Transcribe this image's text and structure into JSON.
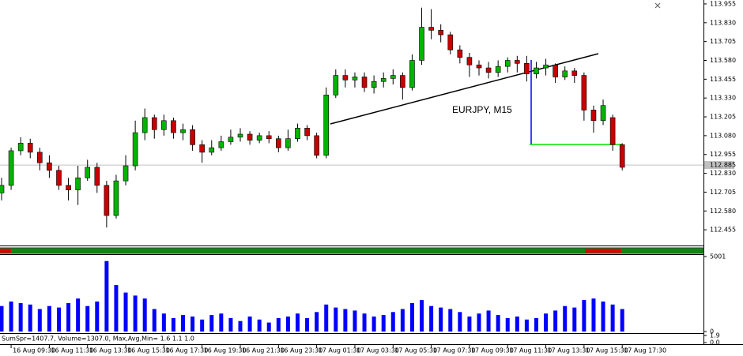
{
  "chart_data": {
    "type": "candlestick",
    "title": "EURJPY, M15",
    "categories": [
      null,
      "16 Aug 09:30",
      null,
      null,
      null,
      "16 Aug 11:30",
      null,
      null,
      null,
      "16 Aug 13:30",
      null,
      null,
      null,
      "16 Aug 15:30",
      null,
      null,
      null,
      "16 Aug 17:30",
      null,
      null,
      null,
      "16 Aug 19:30",
      null,
      null,
      null,
      "16 Aug 21:30",
      null,
      null,
      null,
      "16 Aug 23:30",
      null,
      null,
      null,
      "17 Aug 01:30",
      null,
      null,
      null,
      "17 Aug 03:30",
      null,
      null,
      null,
      "17 Aug 05:30",
      null,
      null,
      null,
      "17 Aug 07:30",
      null,
      null,
      null,
      "17 Aug 09:30",
      null,
      null,
      null,
      "17 Aug 11:30",
      null,
      null,
      null,
      "17 Aug 13:30",
      null,
      null,
      null,
      "17 Aug 15:30",
      null,
      null,
      null,
      "17 Aug 17:30"
    ],
    "open": [
      112.7,
      112.75,
      112.98,
      113.03,
      112.97,
      112.9,
      112.85,
      112.75,
      112.72,
      112.8,
      112.87,
      112.75,
      112.55,
      112.78,
      112.88,
      113.1,
      113.2,
      113.12,
      113.18,
      113.1,
      113.12,
      113.02,
      112.97,
      113.0,
      113.04,
      113.07,
      113.09,
      113.05,
      113.08,
      113.06,
      113.0,
      113.06,
      113.13,
      113.08,
      112.95,
      113.35,
      113.48,
      113.45,
      113.47,
      113.4,
      113.44,
      113.46,
      113.48,
      113.4,
      113.58,
      113.8,
      113.78,
      113.75,
      113.65,
      113.6,
      113.55,
      113.53,
      113.5,
      113.54,
      113.58,
      113.56,
      113.49,
      113.53,
      113.55,
      113.47,
      113.51,
      113.48,
      113.25,
      113.18,
      113.2,
      113.02
    ],
    "high": [
      112.8,
      113.0,
      113.07,
      113.06,
      113.0,
      112.95,
      112.88,
      112.8,
      112.88,
      112.92,
      112.9,
      112.78,
      112.82,
      112.95,
      113.18,
      113.26,
      113.22,
      113.22,
      113.2,
      113.16,
      113.15,
      113.05,
      113.05,
      113.08,
      113.12,
      113.13,
      113.11,
      113.1,
      113.11,
      113.08,
      113.12,
      113.16,
      113.15,
      113.1,
      113.4,
      113.52,
      113.52,
      113.5,
      113.5,
      113.48,
      113.5,
      113.52,
      113.5,
      113.62,
      113.93,
      113.92,
      113.82,
      113.77,
      113.68,
      113.63,
      113.58,
      113.57,
      113.58,
      113.6,
      113.61,
      113.61,
      113.57,
      113.59,
      113.56,
      113.54,
      113.53,
      113.5,
      113.28,
      113.32,
      113.22,
      113.03
    ],
    "low": [
      112.65,
      112.72,
      112.95,
      112.93,
      112.85,
      112.8,
      112.72,
      112.65,
      112.62,
      112.78,
      112.7,
      112.47,
      112.53,
      112.75,
      112.85,
      113.05,
      113.06,
      113.08,
      113.06,
      113.05,
      112.98,
      112.9,
      112.95,
      112.98,
      113.02,
      113.04,
      113.02,
      113.03,
      113.03,
      112.97,
      112.98,
      113.04,
      113.05,
      112.93,
      112.93,
      113.33,
      113.4,
      113.4,
      113.37,
      113.36,
      113.4,
      113.42,
      113.32,
      113.38,
      113.55,
      113.72,
      113.7,
      113.62,
      113.56,
      113.47,
      113.48,
      113.46,
      113.47,
      113.5,
      113.5,
      113.44,
      113.46,
      113.48,
      113.43,
      113.45,
      113.43,
      113.18,
      113.1,
      113.15,
      112.98,
      112.85
    ],
    "close": [
      112.75,
      112.98,
      113.03,
      112.97,
      112.9,
      112.85,
      112.75,
      112.72,
      112.8,
      112.87,
      112.75,
      112.55,
      112.78,
      112.88,
      113.1,
      113.2,
      113.12,
      113.18,
      113.1,
      113.12,
      113.02,
      112.97,
      113.0,
      113.04,
      113.07,
      113.09,
      113.05,
      113.08,
      113.06,
      113.0,
      113.06,
      113.13,
      113.08,
      112.95,
      113.35,
      113.48,
      113.45,
      113.47,
      113.4,
      113.44,
      113.46,
      113.48,
      113.4,
      113.58,
      113.8,
      113.78,
      113.75,
      113.65,
      113.6,
      113.55,
      113.53,
      113.5,
      113.54,
      113.58,
      113.56,
      113.49,
      113.53,
      113.55,
      113.47,
      113.51,
      113.48,
      113.25,
      113.18,
      113.28,
      113.02,
      112.87
    ],
    "up_color": "#00b400",
    "down_color": "#c80000",
    "ylim": [
      112.356,
      113.981
    ],
    "yticks": [
      113.955,
      {
        "value": 113.83,
        "label": "113.830"
      },
      113.705,
      {
        "value": 113.58,
        "label": "113.580"
      },
      113.455,
      {
        "value": 113.33,
        "label": "113.330"
      },
      113.205,
      {
        "value": 113.08,
        "label": "113.080"
      },
      112.955,
      {
        "value": 112.83,
        "label": "112.830"
      },
      112.705,
      {
        "value": 112.58,
        "label": "112.580"
      },
      112.455
    ],
    "last_price": 112.885,
    "volume": {
      "color": "#0000ff",
      "values": [
        1700,
        2000,
        1900,
        1800,
        1500,
        1700,
        1600,
        1900,
        2200,
        1700,
        2000,
        4700,
        3100,
        2600,
        2400,
        2200,
        1500,
        1200,
        900,
        1100,
        1000,
        800,
        1100,
        1200,
        900,
        700,
        1000,
        800,
        600,
        900,
        1000,
        1200,
        900,
        1300,
        1800,
        1600,
        1500,
        1400,
        1200,
        1000,
        1100,
        1300,
        1500,
        1900,
        2100,
        1700,
        1600,
        1500,
        1300,
        1000,
        1200,
        1400,
        1100,
        900,
        1000,
        800,
        900,
        1200,
        1400,
        1700,
        1600,
        2100,
        2200,
        2000,
        1800,
        1500
      ],
      "ylim": [
        0,
        5001
      ],
      "yticks": [
        5001,
        0
      ]
    },
    "indicator": {
      "text": "SumSpr=1407.7, Volume=1307.0, Max,Avg,Min= 1.6 1.1 1.0",
      "ylim": [
        0,
        1.9
      ],
      "yticks": [
        1.9,
        {
          "value": 0,
          "label": "0.0"
        }
      ]
    }
  }
}
